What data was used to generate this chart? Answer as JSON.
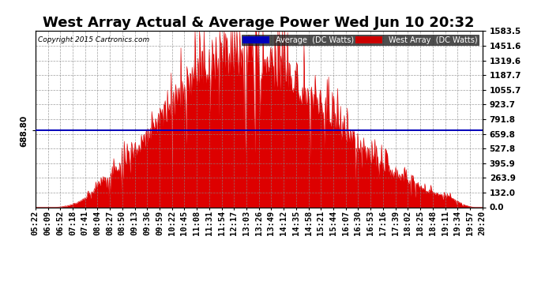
{
  "title": "West Array Actual & Average Power Wed Jun 10 20:32",
  "copyright": "Copyright 2015 Cartronics.com",
  "avg_line_y": 688.8,
  "avg_label": "688.80",
  "ymax": 1583.5,
  "ymin": 0.0,
  "yticks_right": [
    0.0,
    132.0,
    263.9,
    395.9,
    527.8,
    659.8,
    791.8,
    923.7,
    1055.7,
    1187.7,
    1319.6,
    1451.6,
    1583.5
  ],
  "xtick_labels": [
    "05:22",
    "06:09",
    "06:52",
    "07:18",
    "07:41",
    "08:04",
    "08:27",
    "08:50",
    "09:13",
    "09:36",
    "09:59",
    "10:22",
    "10:45",
    "11:08",
    "11:31",
    "11:54",
    "12:17",
    "13:03",
    "13:26",
    "13:49",
    "14:12",
    "14:35",
    "14:58",
    "15:21",
    "15:44",
    "16:07",
    "16:30",
    "16:53",
    "17:16",
    "17:39",
    "18:02",
    "18:25",
    "18:48",
    "19:11",
    "19:34",
    "19:57",
    "20:20"
  ],
  "legend_avg_color": "#0000bb",
  "legend_west_color": "#cc0000",
  "bg_color": "#ffffff",
  "grid_color": "#888888",
  "fill_color": "#dd0000",
  "line_color": "#0000bb",
  "title_fontsize": 13,
  "tick_fontsize": 7.5
}
